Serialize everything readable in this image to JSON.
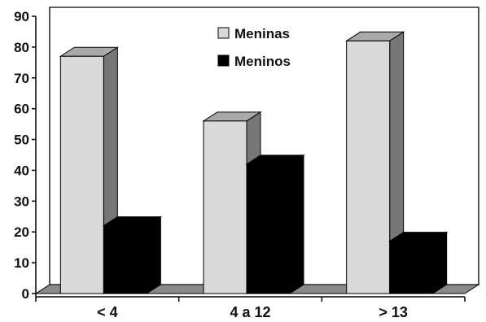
{
  "chart_data": {
    "type": "bar",
    "title": "",
    "xlabel": "",
    "ylabel": "",
    "categories": [
      "< 4",
      "4 a 12",
      "> 13"
    ],
    "series": [
      {
        "name": "Meninas",
        "values": [
          77,
          56,
          82
        ],
        "color": "#d9d9d9"
      },
      {
        "name": "Meninos",
        "values": [
          22,
          42,
          17
        ],
        "color": "#000000"
      }
    ],
    "ylim": [
      0,
      90
    ],
    "yticks": [
      "0",
      "10",
      "20",
      "30",
      "40",
      "50",
      "60",
      "70",
      "80",
      "90"
    ],
    "grid": false,
    "legend_position": "top-center",
    "style": "3d-clustered-column"
  }
}
